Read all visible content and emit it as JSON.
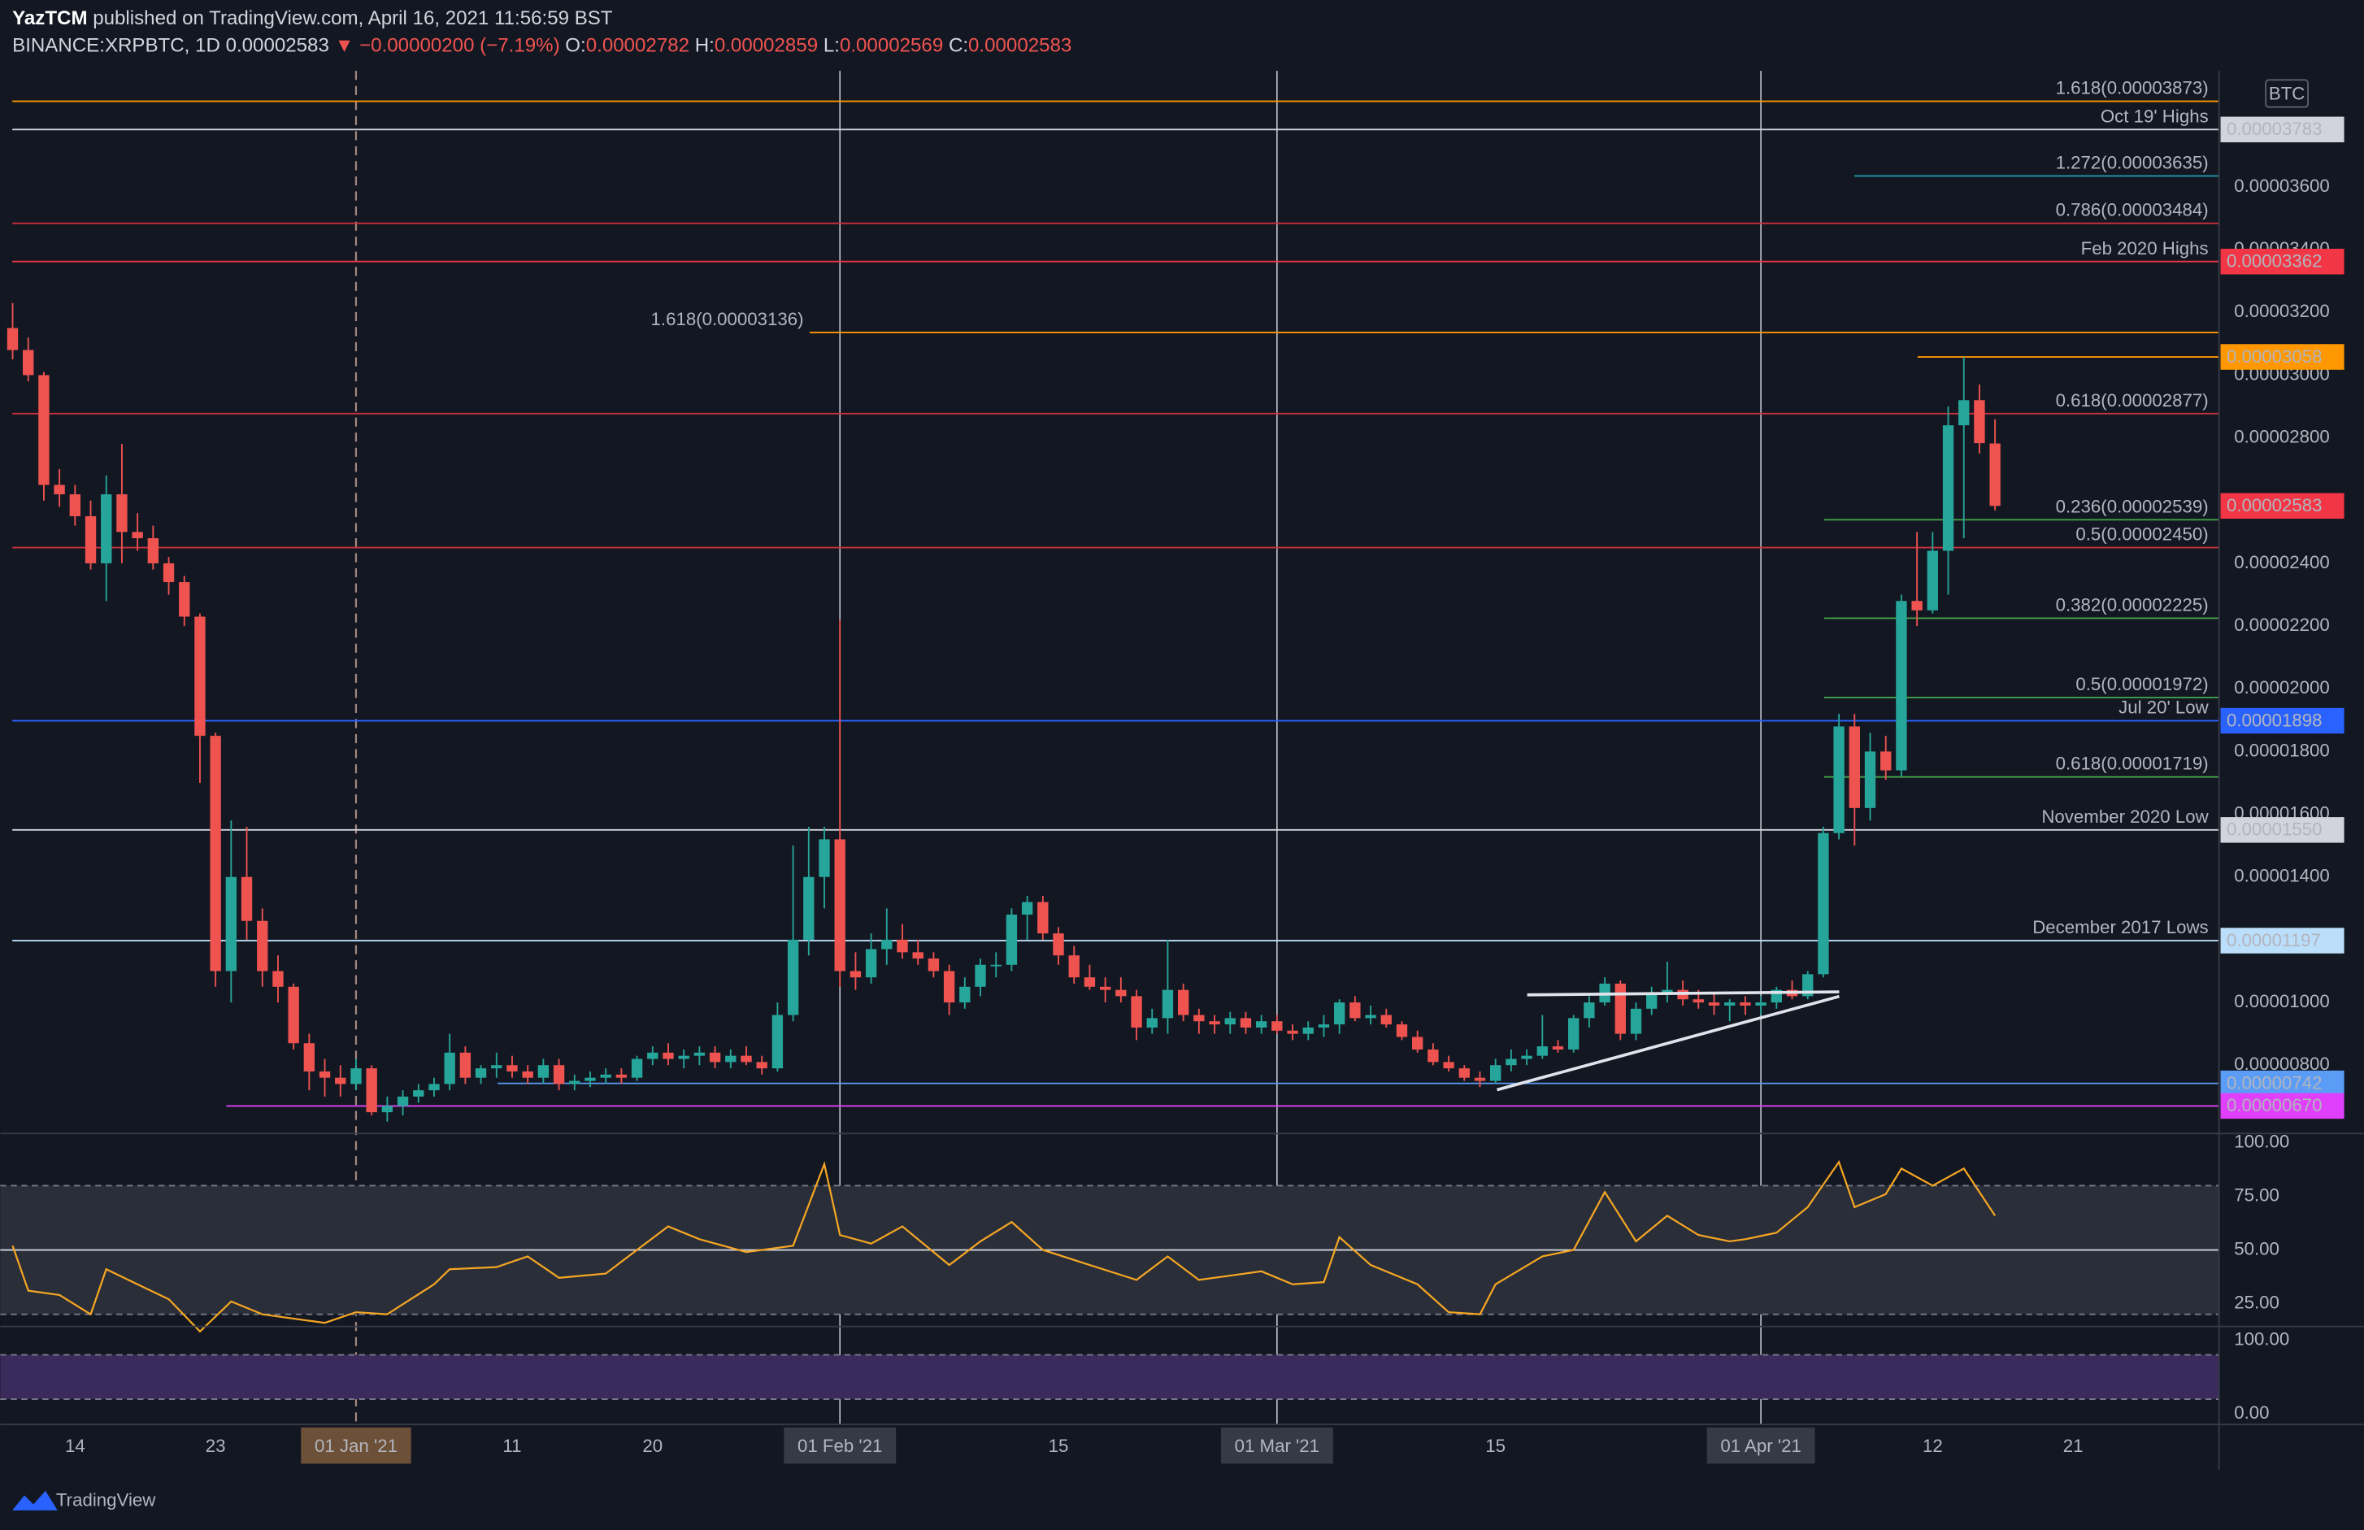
{
  "header": {
    "user": "YazTCM",
    "published": "published on TradingView.com, April 16, 2021 11:56:59 BST",
    "symbol": "BINANCE:XRPBTC, 1D",
    "last": "0.00002583",
    "change": "▼ −0.00000200 (−7.19%)",
    "o_label": "O:",
    "o": "0.00002782",
    "h_label": "H:",
    "h": "0.00002859",
    "l_label": "L:",
    "l": "0.00002569",
    "c_label": "C:",
    "c": "0.00002583"
  },
  "chart_data": [
    {
      "type": "candlestick",
      "unit": "BTC",
      "up_color": "#26a69a",
      "down_color": "#ef5350",
      "open": [
        3.15e-05,
        3.08e-05,
        3e-05,
        2.65e-05,
        2.62e-05,
        2.55e-05,
        2.4e-05,
        2.62e-05,
        2.5e-05,
        2.48e-05,
        2.4e-05,
        2.34e-05,
        2.23e-05,
        1.85e-05,
        1.1e-05,
        1.4e-05,
        1.26e-05,
        1.1e-05,
        1.05e-05,
        8.7e-06,
        7.8e-06,
        7.6e-06,
        7.4e-06,
        7.9e-06,
        6.5e-06,
        6.7e-06,
        7e-06,
        7.2e-06,
        7.4e-06,
        8.4e-06,
        7.6e-06,
        7.9e-06,
        8e-06,
        7.8e-06,
        7.6e-06,
        8e-06,
        7.4e-06,
        7.5e-06,
        7.6e-06,
        7.7e-06,
        7.6e-06,
        8.2e-06,
        8.4e-06,
        8.2e-06,
        8.3e-06,
        8.4e-06,
        8.1e-06,
        8.3e-06,
        8.1e-06,
        7.9e-06,
        9.6e-06,
        1.2e-05,
        1.4e-05,
        1.52e-05,
        1.1e-05,
        1.08e-05,
        1.17e-05,
        1.2e-05,
        1.16e-05,
        1.14e-05,
        1.1e-05,
        1e-05,
        1.05e-05,
        1.12e-05,
        1.12e-05,
        1.28e-05,
        1.32e-05,
        1.22e-05,
        1.15e-05,
        1.08e-05,
        1.05e-05,
        1.04e-05,
        1.02e-05,
        9.2e-06,
        9.5e-06,
        1.04e-05,
        9.6e-06,
        9.4e-06,
        9.3e-06,
        9.5e-06,
        9.2e-06,
        9.4e-06,
        9.1e-06,
        9e-06,
        9.2e-06,
        9.3e-06,
        1e-05,
        9.5e-06,
        9.6e-06,
        9.3e-06,
        8.9e-06,
        8.5e-06,
        8.1e-06,
        7.9e-06,
        7.6e-06,
        7.5e-06,
        8e-06,
        8.2e-06,
        8.3e-06,
        8.6e-06,
        8.5e-06,
        9.5e-06,
        1e-05,
        1.06e-05,
        9e-06,
        9.8e-06,
        1.03e-05,
        1.04e-05,
        1.01e-05,
        1e-05,
        9.9e-06,
        1e-05,
        9.9e-06,
        1e-05,
        1.04e-05,
        1.02e-05,
        1.09e-05,
        1.54e-05,
        1.88e-05,
        1.62e-05,
        1.8e-05,
        1.74e-05,
        2.28e-05,
        2.25e-05,
        2.44e-05,
        2.84e-05,
        2.92e-05,
        2.782e-05
      ],
      "high": [
        3.23e-05,
        3.12e-05,
        3.01e-05,
        2.7e-05,
        2.65e-05,
        2.6e-05,
        2.68e-05,
        2.78e-05,
        2.56e-05,
        2.52e-05,
        2.42e-05,
        2.36e-05,
        2.24e-05,
        1.86e-05,
        1.58e-05,
        1.56e-05,
        1.3e-05,
        1.15e-05,
        1.06e-05,
        9e-06,
        8.2e-06,
        8e-06,
        8.2e-06,
        8e-06,
        7e-06,
        7.2e-06,
        7.4e-06,
        7.6e-06,
        9e-06,
        8.6e-06,
        8e-06,
        8.4e-06,
        8.3e-06,
        8e-06,
        8.2e-06,
        8.2e-06,
        7.7e-06,
        7.8e-06,
        7.9e-06,
        7.9e-06,
        8.3e-06,
        8.6e-06,
        8.7e-06,
        8.5e-06,
        8.6e-06,
        8.6e-06,
        8.5e-06,
        8.6e-06,
        8.3e-06,
        1e-05,
        1.5e-05,
        1.56e-05,
        1.56e-05,
        2.22e-05,
        1.16e-05,
        1.22e-05,
        1.3e-05,
        1.25e-05,
        1.2e-05,
        1.16e-05,
        1.12e-05,
        1.08e-05,
        1.14e-05,
        1.16e-05,
        1.3e-05,
        1.34e-05,
        1.34e-05,
        1.24e-05,
        1.18e-05,
        1.12e-05,
        1.08e-05,
        1.08e-05,
        1.04e-05,
        9.8e-06,
        1.2e-05,
        1.06e-05,
        9.8e-06,
        9.6e-06,
        9.7e-06,
        9.7e-06,
        9.6e-06,
        9.6e-06,
        9.3e-06,
        9.4e-06,
        9.6e-06,
        1.01e-05,
        1.02e-05,
        9.9e-06,
        9.8e-06,
        9.4e-06,
        9.1e-06,
        8.7e-06,
        8.3e-06,
        8e-06,
        7.8e-06,
        8.2e-06,
        8.5e-06,
        8.5e-06,
        9.6e-06,
        8.8e-06,
        9.6e-06,
        1.02e-05,
        1.08e-05,
        1.07e-05,
        1e-05,
        1.05e-05,
        1.13e-05,
        1.07e-05,
        1.04e-05,
        1.03e-05,
        1.01e-05,
        1.02e-05,
        1.02e-05,
        1.05e-05,
        1.07e-05,
        1.1e-05,
        1.56e-05,
        1.92e-05,
        1.92e-05,
        1.86e-05,
        1.85e-05,
        2.3e-05,
        2.5e-05,
        2.5e-05,
        2.9e-05,
        3.058e-05,
        2.97e-05,
        2.859e-05
      ],
      "low": [
        3.05e-05,
        2.98e-05,
        2.6e-05,
        2.58e-05,
        2.52e-05,
        2.38e-05,
        2.28e-05,
        2.4e-05,
        2.44e-05,
        2.38e-05,
        2.3e-05,
        2.2e-05,
        1.7e-05,
        1.05e-05,
        1e-05,
        1.2e-05,
        1.05e-05,
        1e-05,
        8.5e-06,
        7.2e-06,
        7e-06,
        7e-06,
        7.2e-06,
        6.4e-06,
        6.2e-06,
        6.4e-06,
        6.8e-06,
        7e-06,
        7.2e-06,
        7.4e-06,
        7.4e-06,
        7.6e-06,
        7.6e-06,
        7.4e-06,
        7.4e-06,
        7.2e-06,
        7.2e-06,
        7.3e-06,
        7.4e-06,
        7.4e-06,
        7.5e-06,
        8e-06,
        8e-06,
        7.9e-06,
        8e-06,
        7.9e-06,
        7.9e-06,
        8e-06,
        7.7e-06,
        7.8e-06,
        9.4e-06,
        1.15e-05,
        1.3e-05,
        1.05e-05,
        1.04e-05,
        1.06e-05,
        1.12e-05,
        1.14e-05,
        1.12e-05,
        1.08e-05,
        9.6e-06,
        9.8e-06,
        1.02e-05,
        1.08e-05,
        1.1e-05,
        1.2e-05,
        1.2e-05,
        1.12e-05,
        1.06e-05,
        1.04e-05,
        1e-05,
        1e-05,
        8.8e-06,
        9e-06,
        9e-06,
        9.4e-06,
        9e-06,
        9e-06,
        9e-06,
        9e-06,
        9e-06,
        9e-06,
        8.8e-06,
        8.8e-06,
        8.9e-06,
        9e-06,
        9.4e-06,
        9.3e-06,
        9.2e-06,
        8.8e-06,
        8.4e-06,
        8e-06,
        7.8e-06,
        7.5e-06,
        7.3e-06,
        7.4e-06,
        7.8e-06,
        8e-06,
        8.2e-06,
        8.4e-06,
        8.4e-06,
        9.2e-06,
        9.9e-06,
        8.8e-06,
        8.8e-06,
        9.6e-06,
        1e-05,
        9.9e-06,
        9.8e-06,
        9.6e-06,
        9.4e-06,
        9.6e-06,
        9.6e-06,
        9.8e-06,
        1.01e-05,
        1.01e-05,
        1.08e-05,
        1.52e-05,
        1.5e-05,
        1.58e-05,
        1.71e-05,
        1.72e-05,
        2.2e-05,
        2.24e-05,
        2.3e-05,
        2.48e-05,
        2.75e-05,
        2.569e-05
      ],
      "close": [
        3.08e-05,
        3e-05,
        2.65e-05,
        2.62e-05,
        2.55e-05,
        2.4e-05,
        2.62e-05,
        2.5e-05,
        2.48e-05,
        2.4e-05,
        2.34e-05,
        2.23e-05,
        1.85e-05,
        1.1e-05,
        1.4e-05,
        1.26e-05,
        1.1e-05,
        1.05e-05,
        8.7e-06,
        7.8e-06,
        7.6e-06,
        7.4e-06,
        7.9e-06,
        6.5e-06,
        6.7e-06,
        7e-06,
        7.2e-06,
        7.4e-06,
        8.4e-06,
        7.6e-06,
        7.9e-06,
        8e-06,
        7.8e-06,
        7.6e-06,
        8e-06,
        7.4e-06,
        7.5e-06,
        7.6e-06,
        7.7e-06,
        7.6e-06,
        8.2e-06,
        8.4e-06,
        8.2e-06,
        8.3e-06,
        8.4e-06,
        8.1e-06,
        8.3e-06,
        8.1e-06,
        7.9e-06,
        9.6e-06,
        1.2e-05,
        1.4e-05,
        1.52e-05,
        1.1e-05,
        1.08e-05,
        1.17e-05,
        1.2e-05,
        1.16e-05,
        1.14e-05,
        1.1e-05,
        1e-05,
        1.05e-05,
        1.12e-05,
        1.12e-05,
        1.28e-05,
        1.32e-05,
        1.22e-05,
        1.15e-05,
        1.08e-05,
        1.05e-05,
        1.04e-05,
        1.02e-05,
        9.2e-06,
        9.5e-06,
        1.04e-05,
        9.6e-06,
        9.4e-06,
        9.3e-06,
        9.5e-06,
        9.2e-06,
        9.4e-06,
        9.1e-06,
        9e-06,
        9.2e-06,
        9.3e-06,
        1e-05,
        9.5e-06,
        9.6e-06,
        9.3e-06,
        8.9e-06,
        8.5e-06,
        8.1e-06,
        7.9e-06,
        7.6e-06,
        7.5e-06,
        8e-06,
        8.2e-06,
        8.3e-06,
        8.6e-06,
        8.5e-06,
        9.5e-06,
        1e-05,
        1.06e-05,
        9e-06,
        9.8e-06,
        1.03e-05,
        1.04e-05,
        1.01e-05,
        1e-05,
        9.9e-06,
        1e-05,
        9.9e-06,
        1e-05,
        1.04e-05,
        1.02e-05,
        1.09e-05,
        1.54e-05,
        1.88e-05,
        1.62e-05,
        1.8e-05,
        1.74e-05,
        2.28e-05,
        2.25e-05,
        2.44e-05,
        2.84e-05,
        2.92e-05,
        2.783e-05,
        2.583e-05
      ],
      "xlim": [
        0,
        141.35
      ],
      "xticks": [
        {
          "value": 4,
          "label": "14"
        },
        {
          "value": 13,
          "label": "23"
        },
        {
          "value": 22,
          "label": "01 Jan '21"
        },
        {
          "value": 32,
          "label": "11"
        },
        {
          "value": 41,
          "label": "20"
        },
        {
          "value": 53,
          "label": "01 Feb '21"
        },
        {
          "value": 67,
          "label": "15"
        },
        {
          "value": 81,
          "label": "01 Mar '21"
        },
        {
          "value": 95,
          "label": "15"
        },
        {
          "value": 112,
          "label": "01 Apr '21"
        },
        {
          "value": 123,
          "label": "12"
        },
        {
          "value": 132,
          "label": "21"
        }
      ],
      "ylim": [
        5.82e-06,
        3.97e-05
      ],
      "yticks": [
        {
          "value": 3.6e-05,
          "label": "0.00003600"
        },
        {
          "value": 3.4e-05,
          "label": "0.00003400"
        },
        {
          "value": 3.2e-05,
          "label": "0.00003200"
        },
        {
          "value": 3e-05,
          "label": "0.00003000"
        },
        {
          "value": 2.8e-05,
          "label": "0.00002800"
        },
        {
          "value": 2.4e-05,
          "label": "0.00002400"
        },
        {
          "value": 2.2e-05,
          "label": "0.00002200"
        },
        {
          "value": 2e-05,
          "label": "0.00002000"
        },
        {
          "value": 1.8e-05,
          "label": "0.00001800"
        },
        {
          "value": 1.6e-05,
          "label": "0.00001600"
        },
        {
          "value": 1.4e-05,
          "label": "0.00001400"
        },
        {
          "value": 1e-05,
          "label": "0.00001000"
        },
        {
          "value": 8e-06,
          "label": "0.00000800"
        }
      ],
      "levels": [
        {
          "value": 3.873e-05,
          "text": "1.618(0.00003873)",
          "color": "#ff9800"
        },
        {
          "value": 3.783e-05,
          "text": "Oct 19' Highs",
          "color": "#d1d4dc",
          "text_color": "#9598a1",
          "tag": "0.00003783"
        },
        {
          "value": 3.635e-05,
          "text": "1.272(0.00003635)",
          "color": "#2196a8",
          "text_color": "#4fb3cf"
        },
        {
          "value": 3.484e-05,
          "text": "0.786(0.00003484)",
          "color": "#c8313c",
          "text_color": "#f05a5a"
        },
        {
          "value": 3.362e-05,
          "text": "Feb 2020 Highs",
          "color": "#f23645",
          "text_color": "#9598a1",
          "tag": "0.00003362"
        },
        {
          "value": 3.136e-05,
          "text": "1.618(0.00003136)",
          "color": "#ff9800"
        },
        {
          "value": 3.058e-05,
          "color": "#ff9800",
          "tag": "0.00003058"
        },
        {
          "value": 2.877e-05,
          "text": "0.618(0.00002877)",
          "color": "#c8313c",
          "text_color": "#f05a5a"
        },
        {
          "value": 2.539e-05,
          "text": "0.236(0.00002539)",
          "color": "#43a047",
          "text_color": "#66bb6a"
        },
        {
          "value": 2.45e-05,
          "text": "0.5(0.00002450)",
          "color": "#c8313c",
          "text_color": "#f05a5a"
        },
        {
          "value": 2.225e-05,
          "text": "0.382(0.00002225)",
          "color": "#43a047",
          "text_color": "#66bb6a"
        },
        {
          "value": 1.972e-05,
          "text": "0.5(0.00001972)",
          "color": "#43a047",
          "text_color": "#66bb6a"
        },
        {
          "value": 1.898e-05,
          "text": "Jul 20' Low",
          "color": "#2962ff",
          "text_color": "#9598a1",
          "tag": "0.00001898"
        },
        {
          "value": 1.719e-05,
          "text": "0.618(0.00001719)",
          "color": "#43a047",
          "text_color": "#66bb6a"
        },
        {
          "value": 1.55e-05,
          "text": "November 2020 Low",
          "color": "#d1d4dc",
          "text_color": "#9598a1",
          "tag": "0.00001550"
        },
        {
          "value": 1.197e-05,
          "text": "December 2017 Lows",
          "color": "#bbdefb",
          "text_color": "#9598a1",
          "tag": "0.00001197"
        },
        {
          "value": 7.42e-06,
          "color": "#5b9cf6",
          "tag": "0.00000742"
        },
        {
          "value": 6.7e-06,
          "color": "#e040fb",
          "tag": "0.00000670"
        }
      ],
      "last": {
        "value": 2.583e-05,
        "tag": "0.00002583",
        "color": "#f23645"
      }
    },
    {
      "type": "line",
      "color": "#f5a623",
      "xlim": [
        0,
        141.35
      ],
      "x": [
        0,
        1,
        3,
        5,
        6,
        8,
        10,
        12,
        14,
        16,
        20,
        22,
        24,
        27,
        28,
        31,
        33,
        35,
        38,
        40,
        42,
        44,
        47,
        50,
        52,
        53,
        55,
        57,
        60,
        62,
        64,
        66,
        69,
        72,
        74,
        76,
        80,
        82,
        84,
        85,
        87,
        90,
        92,
        94,
        95,
        98,
        100,
        102,
        104,
        106,
        108,
        110,
        111,
        113,
        115,
        117,
        118,
        120,
        121,
        123,
        125,
        127
      ],
      "values": [
        52,
        31,
        29,
        20,
        41,
        34,
        27,
        12,
        26,
        20,
        16,
        21,
        20,
        34,
        41,
        42,
        47,
        37,
        39,
        50,
        61,
        55,
        49,
        52,
        90,
        57,
        53,
        61,
        43,
        54,
        63,
        50,
        43,
        36,
        47,
        36,
        40,
        34,
        35,
        56,
        43,
        34,
        21,
        20,
        34,
        47,
        50,
        77,
        54,
        66,
        57,
        54,
        55,
        58,
        70,
        91,
        70,
        76,
        88,
        80,
        88,
        66
      ],
      "ylim": [
        14.3,
        104.3
      ],
      "yticks": [
        {
          "value": 100,
          "label": "100.00"
        },
        {
          "value": 75,
          "label": "75.00"
        },
        {
          "value": 50,
          "label": "50.00"
        },
        {
          "value": 25,
          "label": "25.00"
        }
      ],
      "band": [
        20,
        80
      ],
      "band_color": "#2a2e39",
      "midline": 50
    },
    {
      "type": "oscillator",
      "ylim": [
        -14.3,
        114.3
      ],
      "yticks": [
        {
          "value": 100,
          "label": "100.00"
        },
        {
          "value": 0,
          "label": "0.00"
        }
      ],
      "band": [
        20,
        80
      ],
      "band_color": "#3b2a5c"
    }
  ],
  "footer": {
    "brand": "TradingView"
  }
}
